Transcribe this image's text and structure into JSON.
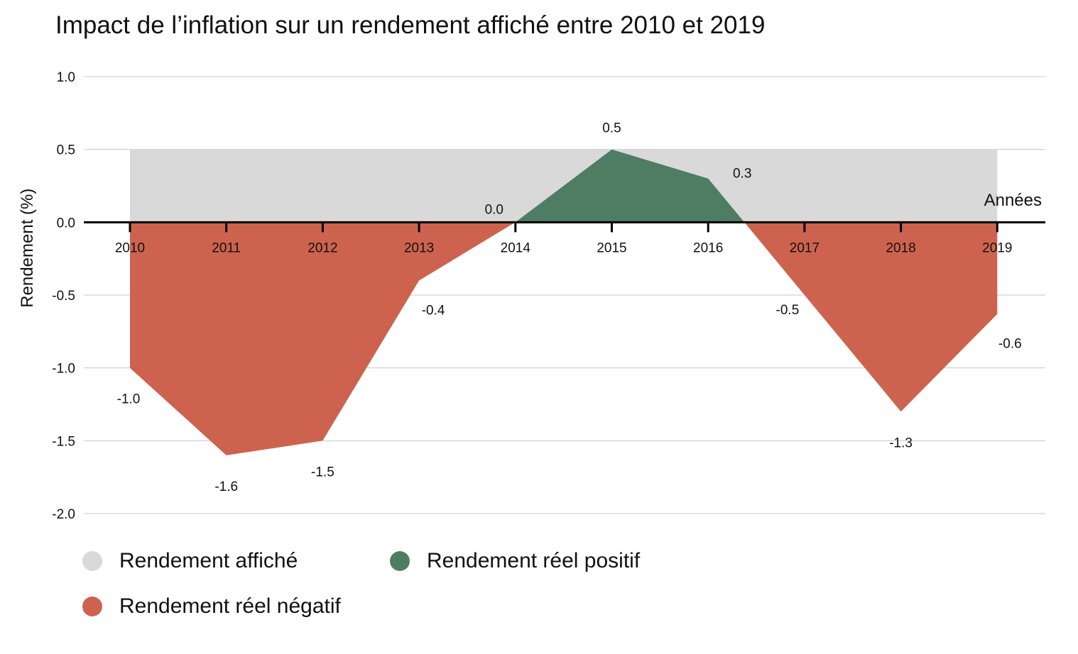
{
  "chart_data": {
    "type": "area",
    "title": "Impact de l’inflation sur un rendement affiché entre 2010 et 2019",
    "ylabel": "Rendement (%)",
    "xlabel": "Années",
    "ylim": [
      -2.0,
      1.0
    ],
    "yticks": [
      "1.0",
      "0.5",
      "0.0",
      "-0.5",
      "-1.0",
      "-1.5",
      "-2.0"
    ],
    "ytick_values": [
      1.0,
      0.5,
      0.0,
      -0.5,
      -1.0,
      -1.5,
      -2.0
    ],
    "categories": [
      "2010",
      "2011",
      "2012",
      "2013",
      "2014",
      "2015",
      "2016",
      "2017",
      "2018",
      "2019"
    ],
    "displayed_yield": 0.5,
    "real_yield": [
      -1.0,
      -1.6,
      -1.5,
      -0.4,
      0.0,
      0.5,
      0.3,
      -0.5,
      -1.3,
      -0.63
    ],
    "data_labels": [
      "-1.0",
      "-1.6",
      "-1.5",
      "-0.4",
      "0.0",
      "0.5",
      "0.3",
      "-0.5",
      "-1.3",
      "-0.6"
    ],
    "grid": true,
    "legend_position": "bottom-left",
    "series": [
      {
        "name": "Rendement affiché",
        "color": "#d9d9d9"
      },
      {
        "name": "Rendement réel positif",
        "color": "#4e7d64"
      },
      {
        "name": "Rendement réel négatif",
        "color": "#cd634e"
      }
    ]
  }
}
